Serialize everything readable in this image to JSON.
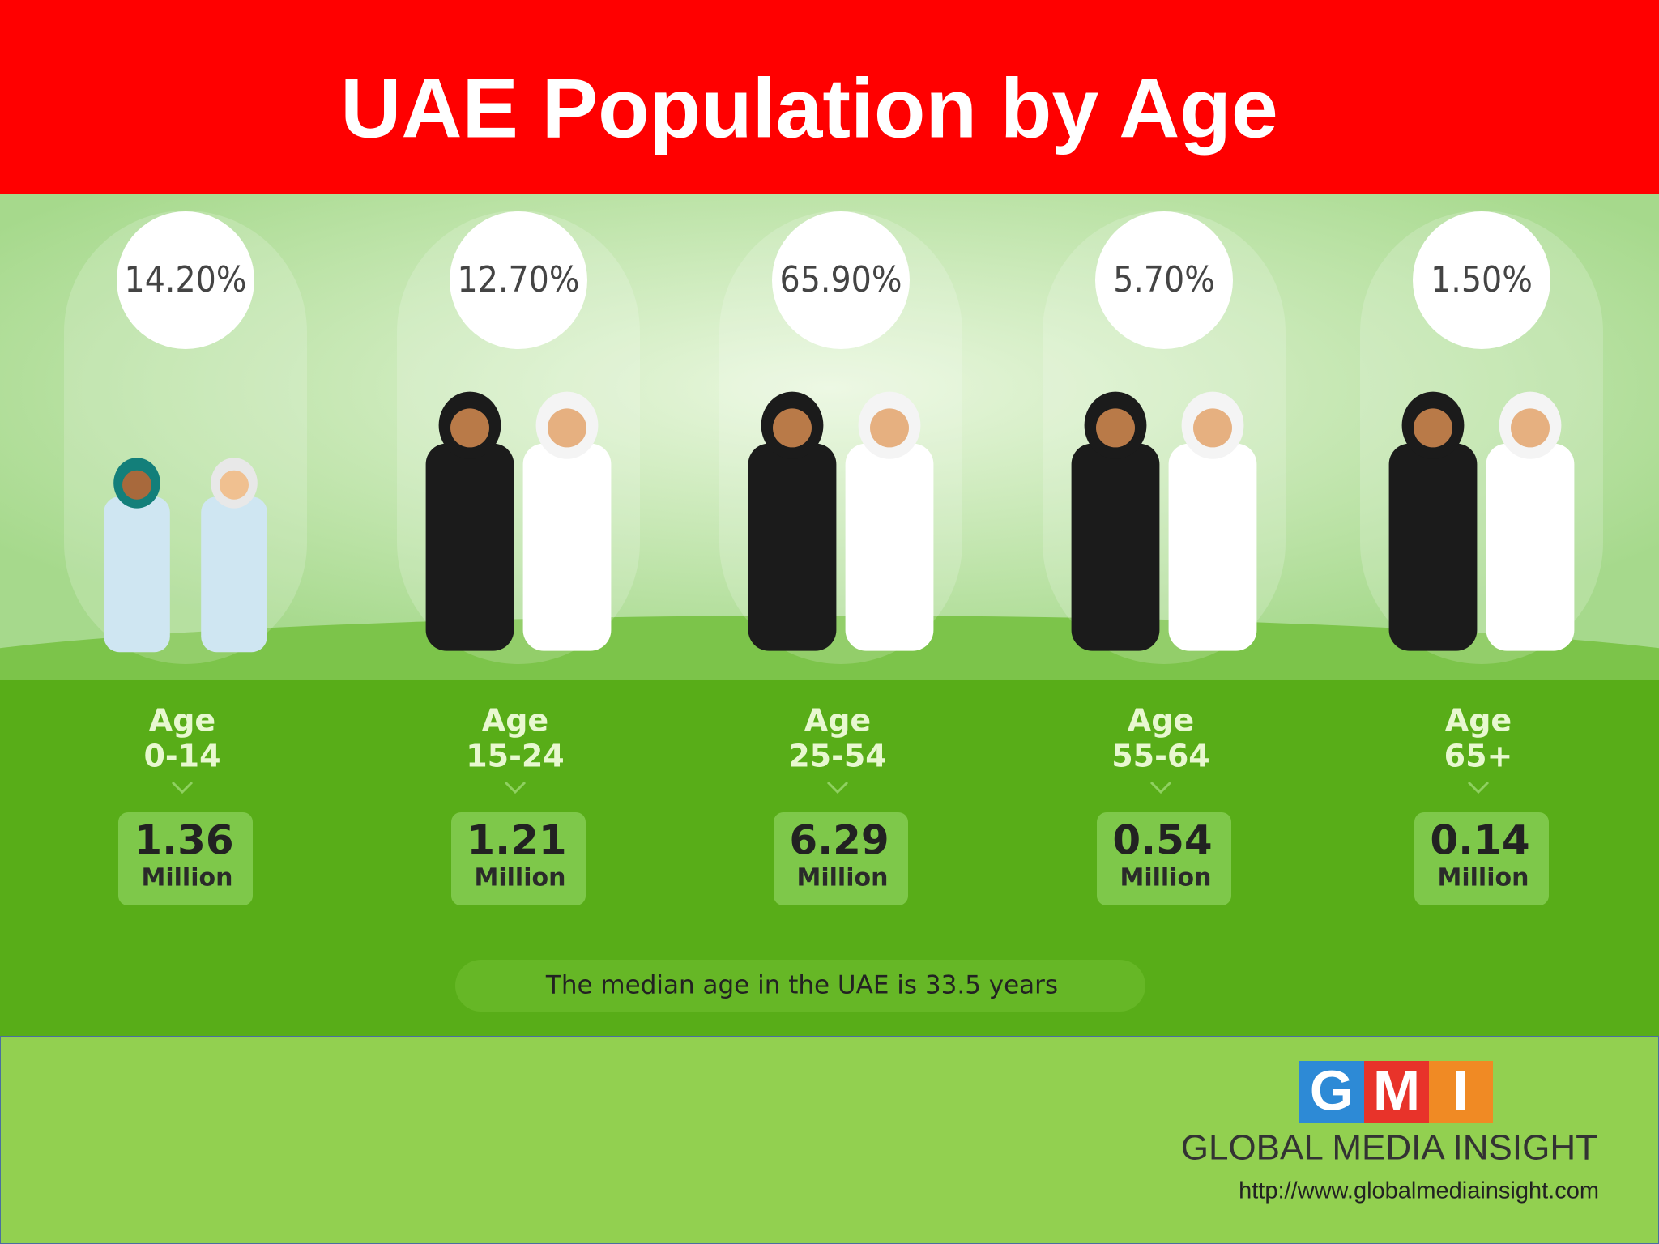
{
  "header": {
    "title": "UAE Population by Age"
  },
  "groups": [
    {
      "percent": "14.20%",
      "age_word": "Age",
      "age_range": "0-14",
      "value": "1.36",
      "unit": "Million"
    },
    {
      "percent": "12.70%",
      "age_word": "Age",
      "age_range": "15-24",
      "value": "1.21",
      "unit": "Million"
    },
    {
      "percent": "65.90%",
      "age_word": "Age",
      "age_range": "25-54",
      "value": "6.29",
      "unit": "Million"
    },
    {
      "percent": "5.70%",
      "age_word": "Age",
      "age_range": "55-64",
      "value": "0.54",
      "unit": "Million"
    },
    {
      "percent": "1.50%",
      "age_word": "Age",
      "age_range": "65+",
      "value": "0.14",
      "unit": "Million"
    }
  ],
  "median_note": "The median age in the UAE is 33.5 years",
  "footer": {
    "logo_letters": [
      "G",
      "M",
      "I"
    ],
    "brand": "GLOBAL MEDIA INSIGHT",
    "url": "http://www.globalmediainsight.com"
  }
}
